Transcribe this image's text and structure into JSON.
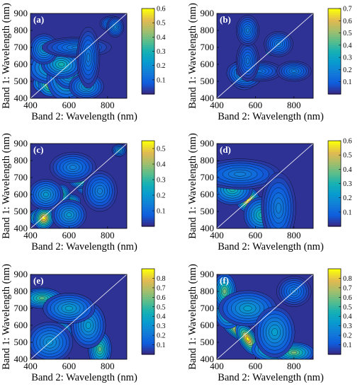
{
  "chart_data": [
    {
      "type": "heatmap",
      "panel": "(a)",
      "xlabel": "Band 2: Wavelength (nm)",
      "ylabel": "Band 1: Wavelength (nm)",
      "xlim": [
        400,
        900
      ],
      "ylim": [
        400,
        900
      ],
      "xticks": [
        400,
        600,
        800
      ],
      "yticks": [
        400,
        500,
        600,
        700,
        800,
        900
      ],
      "colorbar": {
        "min": 0,
        "max": 0.6,
        "ticks": [
          0.1,
          0.2,
          0.3,
          0.4,
          0.5,
          0.6
        ]
      },
      "diagonal": true,
      "blobs": [
        {
          "x": 500,
          "y": 510,
          "sx": 60,
          "sy": 45,
          "value": 0.6,
          "rho": 0.55
        },
        {
          "x": 520,
          "y": 590,
          "sx": 90,
          "sy": 70,
          "value": 0.32,
          "rho": 0.2
        },
        {
          "x": 600,
          "y": 560,
          "sx": 55,
          "sy": 70,
          "value": 0.3,
          "rho": 0.1
        },
        {
          "x": 690,
          "y": 470,
          "sx": 60,
          "sy": 50,
          "value": 0.22,
          "rho": 0
        },
        {
          "x": 640,
          "y": 700,
          "sx": 120,
          "sy": 40,
          "value": 0.14,
          "rho": 0
        },
        {
          "x": 820,
          "y": 840,
          "sx": 40,
          "sy": 30,
          "value": 0.16,
          "rho": 0
        }
      ]
    },
    {
      "type": "heatmap",
      "panel": "(b)",
      "xlabel": "Band 2: Wavelength (nm)",
      "ylabel": "Band 1: Wavelength (nm)",
      "xlim": [
        400,
        900
      ],
      "ylim": [
        400,
        900
      ],
      "xticks": [
        400,
        600,
        800
      ],
      "yticks": [
        400,
        500,
        600,
        700,
        800,
        900
      ],
      "colorbar": {
        "min": 0,
        "max": 0.7,
        "ticks": [
          0.1,
          0.2,
          0.3,
          0.4,
          0.5,
          0.6,
          0.7
        ]
      },
      "diagonal": true,
      "blobs": [
        {
          "x": 680,
          "y": 680,
          "sx": 18,
          "sy": 18,
          "value": 0.7,
          "rho": 0
        },
        {
          "x": 540,
          "y": 540,
          "sx": 50,
          "sy": 60,
          "value": 0.25,
          "rho": 0.3
        },
        {
          "x": 620,
          "y": 560,
          "sx": 80,
          "sy": 40,
          "value": 0.14,
          "rho": 0
        },
        {
          "x": 560,
          "y": 800,
          "sx": 40,
          "sy": 60,
          "value": 0.16,
          "rho": 0
        },
        {
          "x": 720,
          "y": 720,
          "sx": 50,
          "sy": 50,
          "value": 0.16,
          "rho": 0
        }
      ]
    },
    {
      "type": "heatmap",
      "panel": "(c)",
      "xlabel": "Band 2: Wavelength (nm)",
      "ylabel": "Band 1: Wavelength (nm)",
      "xlim": [
        400,
        900
      ],
      "ylim": [
        400,
        900
      ],
      "xticks": [
        400,
        600,
        800
      ],
      "yticks": [
        400,
        500,
        600,
        700,
        800,
        900
      ],
      "colorbar": {
        "min": 0,
        "max": 0.55,
        "ticks": [
          0.1,
          0.2,
          0.3,
          0.4,
          0.5
        ]
      },
      "diagonal": true,
      "blobs": [
        {
          "x": 460,
          "y": 470,
          "sx": 45,
          "sy": 35,
          "value": 0.55,
          "rho": 0.3
        },
        {
          "x": 560,
          "y": 560,
          "sx": 25,
          "sy": 25,
          "value": 0.5,
          "rho": 0
        },
        {
          "x": 600,
          "y": 560,
          "sx": 40,
          "sy": 30,
          "value": 0.35,
          "rho": 0
        },
        {
          "x": 480,
          "y": 600,
          "sx": 60,
          "sy": 60,
          "value": 0.2,
          "rho": 0
        },
        {
          "x": 680,
          "y": 660,
          "sx": 30,
          "sy": 40,
          "value": 0.3,
          "rho": 0
        },
        {
          "x": 620,
          "y": 760,
          "sx": 80,
          "sy": 60,
          "value": 0.14,
          "rho": 0
        },
        {
          "x": 860,
          "y": 860,
          "sx": 25,
          "sy": 25,
          "value": 0.2,
          "rho": 0
        }
      ]
    },
    {
      "type": "heatmap",
      "panel": "(d)",
      "xlabel": "Band 2: Wavelength (nm)",
      "ylabel": "Band 1: Wavelength (nm)",
      "xlim": [
        400,
        900
      ],
      "ylim": [
        400,
        900
      ],
      "xticks": [
        400,
        600,
        800
      ],
      "yticks": [
        400,
        500,
        600,
        700,
        800,
        900
      ],
      "colorbar": {
        "min": 0,
        "max": 0.6,
        "ticks": [
          0.1,
          0.2,
          0.3,
          0.4,
          0.5,
          0.6
        ]
      },
      "diagonal": true,
      "blobs": [
        {
          "x": 570,
          "y": 560,
          "sx": 50,
          "sy": 40,
          "value": 0.6,
          "rho": -0.6
        },
        {
          "x": 480,
          "y": 650,
          "sx": 70,
          "sy": 60,
          "value": 0.35,
          "rho": 0
        },
        {
          "x": 630,
          "y": 480,
          "sx": 60,
          "sy": 70,
          "value": 0.3,
          "rho": 0
        },
        {
          "x": 690,
          "y": 690,
          "sx": 25,
          "sy": 25,
          "value": 0.4,
          "rho": 0
        },
        {
          "x": 520,
          "y": 720,
          "sx": 140,
          "sy": 60,
          "value": 0.15,
          "rho": 0
        }
      ]
    },
    {
      "type": "heatmap",
      "panel": "(e)",
      "xlabel": "Band 2: Wavelength (nm)",
      "ylabel": "Band 1: Wavelength (nm)",
      "xlim": [
        400,
        900
      ],
      "ylim": [
        400,
        900
      ],
      "xticks": [
        400,
        600,
        800
      ],
      "yticks": [
        400,
        500,
        600,
        700,
        800,
        900
      ],
      "colorbar": {
        "min": 0,
        "max": 0.9,
        "ticks": [
          0.1,
          0.2,
          0.3,
          0.4,
          0.5,
          0.6,
          0.7,
          0.8
        ]
      },
      "diagonal": true,
      "blobs": [
        {
          "x": 560,
          "y": 560,
          "sx": 40,
          "sy": 35,
          "value": 0.8,
          "rho": 0
        },
        {
          "x": 460,
          "y": 760,
          "sx": 70,
          "sy": 40,
          "value": 0.55,
          "rho": 0
        },
        {
          "x": 760,
          "y": 460,
          "sx": 40,
          "sy": 70,
          "value": 0.55,
          "rho": 0
        },
        {
          "x": 680,
          "y": 680,
          "sx": 30,
          "sy": 30,
          "value": 0.8,
          "rho": 0
        },
        {
          "x": 600,
          "y": 700,
          "sx": 90,
          "sy": 60,
          "value": 0.35,
          "rho": 0
        },
        {
          "x": 700,
          "y": 600,
          "sx": 60,
          "sy": 90,
          "value": 0.35,
          "rho": 0
        },
        {
          "x": 500,
          "y": 500,
          "sx": 80,
          "sy": 80,
          "value": 0.3,
          "rho": 0
        }
      ]
    },
    {
      "type": "heatmap",
      "panel": "(f)",
      "xlabel": "Band 2: Wavelength (nm)",
      "ylabel": "Band 1: Wavelength (nm)",
      "xlim": [
        400,
        900
      ],
      "ylim": [
        400,
        900
      ],
      "xticks": [
        400,
        600,
        800
      ],
      "yticks": [
        400,
        500,
        600,
        700,
        800,
        900
      ],
      "colorbar": {
        "min": 0,
        "max": 0.9,
        "ticks": [
          0.1,
          0.2,
          0.3,
          0.4,
          0.5,
          0.6,
          0.7,
          0.8
        ]
      },
      "diagonal": true,
      "blobs": [
        {
          "x": 520,
          "y": 560,
          "sx": 70,
          "sy": 30,
          "value": 0.9,
          "rho": -0.7
        },
        {
          "x": 700,
          "y": 460,
          "sx": 80,
          "sy": 50,
          "value": 0.7,
          "rho": 0
        },
        {
          "x": 440,
          "y": 800,
          "sx": 40,
          "sy": 70,
          "value": 0.6,
          "rho": 0
        },
        {
          "x": 680,
          "y": 680,
          "sx": 30,
          "sy": 30,
          "value": 0.7,
          "rho": 0
        },
        {
          "x": 560,
          "y": 700,
          "sx": 100,
          "sy": 70,
          "value": 0.35,
          "rho": 0
        },
        {
          "x": 800,
          "y": 800,
          "sx": 60,
          "sy": 60,
          "value": 0.2,
          "rho": 0
        }
      ]
    }
  ]
}
